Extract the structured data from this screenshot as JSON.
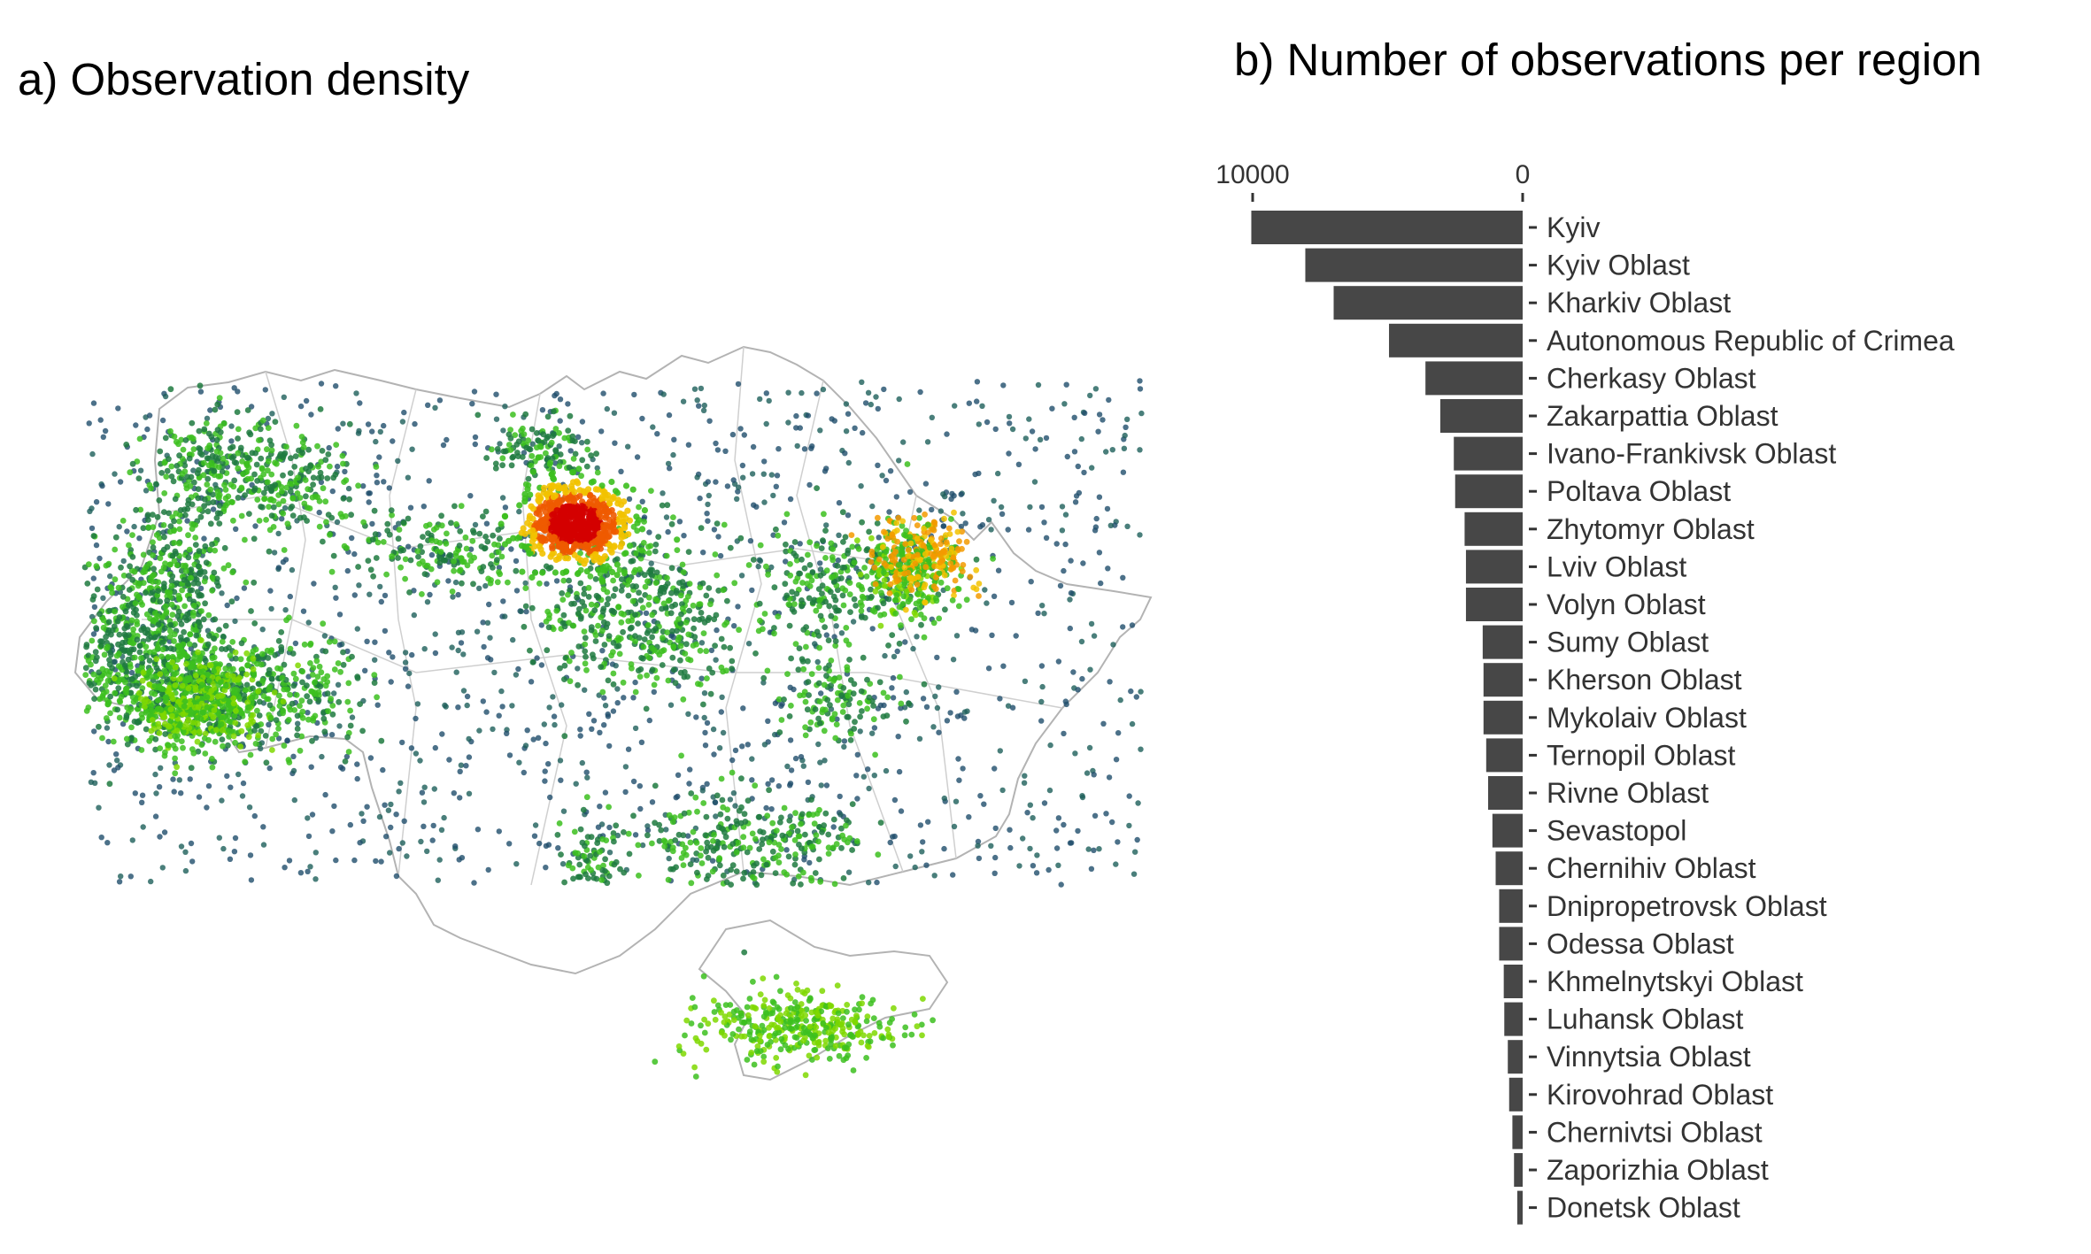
{
  "panels": {
    "a_title": "a) Observation density",
    "b_title": "b) Number of observations per region"
  },
  "chart_data": [
    {
      "type": "scatter",
      "title": "a) Observation density",
      "description_kind": "density map of observation points over regional boundaries",
      "colors": {
        "low": "#1f4e6b",
        "mid_low": "#1f7a3f",
        "mid": "#3cbf1e",
        "mid_high": "#f2c200",
        "high": "#d40000",
        "boundary": "#b3b3b3"
      },
      "hotspots": [
        {
          "region": "Kyiv",
          "intensity": "high"
        },
        {
          "region": "Kharkiv Oblast",
          "intensity": "medium-high"
        },
        {
          "region": "Autonomous Republic of Crimea",
          "intensity": "medium"
        },
        {
          "region": "Zakarpattia Oblast",
          "intensity": "medium"
        }
      ]
    },
    {
      "type": "bar",
      "orientation": "horizontal",
      "title": "b) Number of observations per region",
      "xlim": [
        0,
        10000
      ],
      "x_reversed": true,
      "x_axis_position": "top",
      "tick_values": [
        10000,
        0
      ],
      "tick_labels": [
        "10000",
        "0"
      ],
      "bar_color": "#474747",
      "categories": [
        "Kyiv",
        "Kyiv Oblast",
        "Kharkiv Oblast",
        "Autonomous Republic of Crimea",
        "Cherkasy Oblast",
        "Zakarpattia Oblast",
        "Ivano-Frankivsk Oblast",
        "Poltava Oblast",
        "Zhytomyr Oblast",
        "Lviv Oblast",
        "Volyn Oblast",
        "Sumy Oblast",
        "Kherson Oblast",
        "Mykolaiv Oblast",
        "Ternopil Oblast",
        "Rivne Oblast",
        "Sevastopol",
        "Chernihiv Oblast",
        "Dnipropetrovsk Oblast",
        "Odessa Oblast",
        "Khmelnytskyi Oblast",
        "Luhansk Oblast",
        "Vinnytsia Oblast",
        "Kirovohrad Oblast",
        "Chernivtsi Oblast",
        "Zaporizhia Oblast",
        "Donetsk Oblast"
      ],
      "values": [
        10050,
        8050,
        7000,
        4950,
        3600,
        3050,
        2550,
        2500,
        2150,
        2100,
        2100,
        1480,
        1450,
        1450,
        1350,
        1280,
        1120,
        1000,
        870,
        870,
        700,
        680,
        550,
        500,
        380,
        320,
        200
      ]
    }
  ]
}
